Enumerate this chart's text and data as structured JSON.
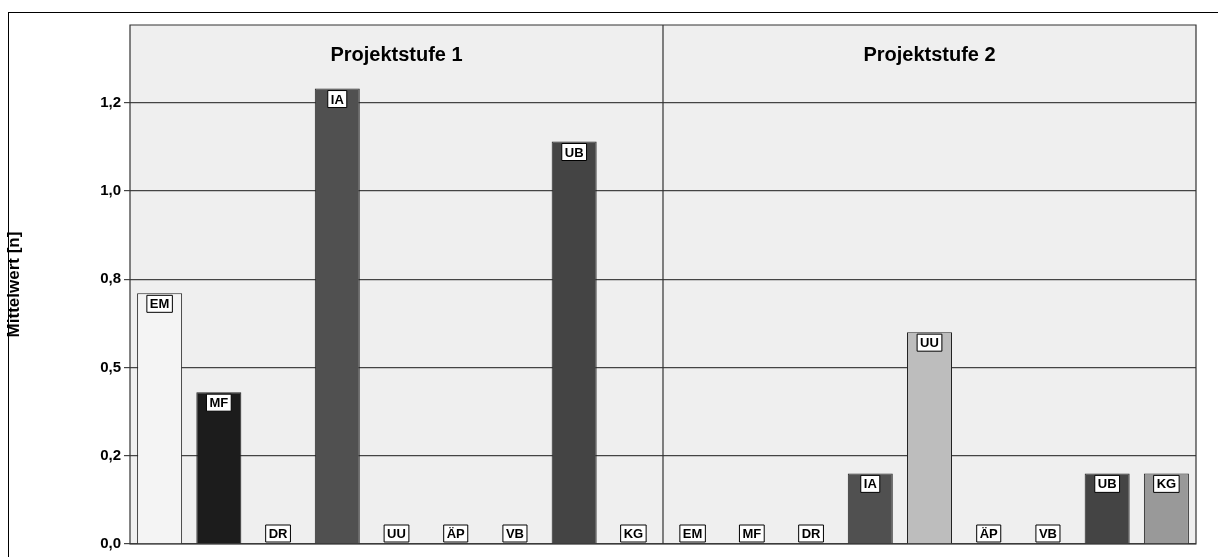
{
  "chart_data": [
    {
      "type": "bar",
      "title": "Projektstufe 1",
      "ylabel": "Mittelwert [n]",
      "categories": [
        "EM",
        "MF",
        "DR",
        "IA",
        "UU",
        "ÄP",
        "VB",
        "UB",
        "KG"
      ],
      "values": [
        0.71,
        0.43,
        0,
        1.29,
        0,
        0,
        0,
        1.14,
        0
      ],
      "colors": [
        "#f4f4f4",
        "#1c1c1c",
        "#888888",
        "#505050",
        "#bdbdbd",
        "#888888",
        "#888888",
        "#444444",
        "#999999"
      ],
      "ylim": [
        0,
        1.47
      ],
      "yticks": [
        {
          "value": 0,
          "label": "0,0"
        },
        {
          "value": 0.25,
          "label": "0,2"
        },
        {
          "value": 0.5,
          "label": "0,5"
        },
        {
          "value": 0.75,
          "label": "0,8"
        },
        {
          "value": 1,
          "label": "1,0"
        },
        {
          "value": 1.25,
          "label": "1,2"
        }
      ],
      "grid": "y",
      "tick_labels": "y"
    },
    {
      "type": "bar",
      "title": "Projektstufe 2",
      "categories": [
        "EM",
        "MF",
        "DR",
        "IA",
        "UU",
        "ÄP",
        "VB",
        "UB",
        "KG"
      ],
      "values": [
        0,
        0,
        0,
        0.2,
        0.6,
        0,
        0,
        0.2,
        0.2
      ],
      "colors": [
        "#f4f4f4",
        "#1c1c1c",
        "#888888",
        "#505050",
        "#bdbdbd",
        "#888888",
        "#888888",
        "#444444",
        "#999999"
      ],
      "ylim": [
        0,
        1.47
      ],
      "yticks": [
        {
          "value": 0,
          "label": null
        },
        {
          "value": 0.25,
          "label": null
        },
        {
          "value": 0.5,
          "label": null
        },
        {
          "value": 0.75,
          "label": null
        },
        {
          "value": 1,
          "label": null
        },
        {
          "value": 1.25,
          "label": null
        }
      ],
      "grid": "y",
      "tick_labels": false
    }
  ]
}
